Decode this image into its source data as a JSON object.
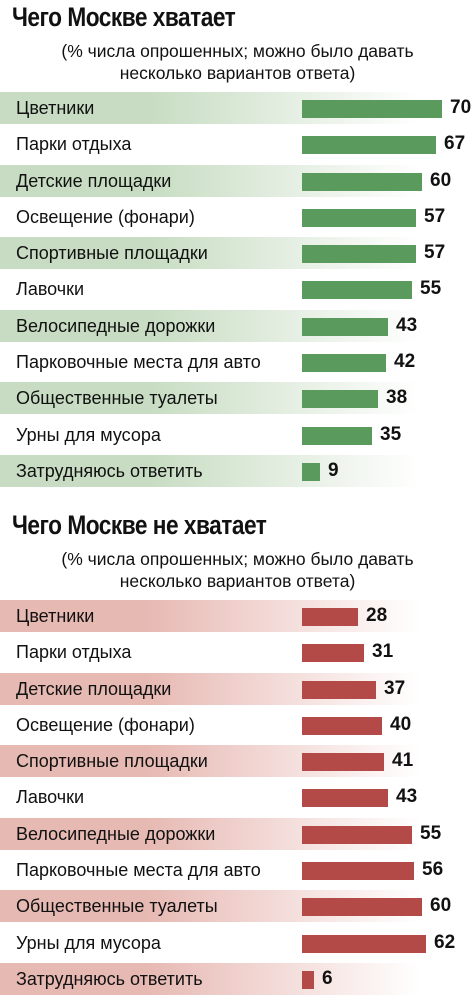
{
  "colors": {
    "green_bar": "#5a9a5c",
    "green_band": "#c7dcc2",
    "red_bar": "#b34a48",
    "red_band": "#e7b9b3"
  },
  "chart_data": [
    {
      "type": "bar",
      "orientation": "horizontal",
      "title": "Чего Москве хватает",
      "subtitle": "(% числа опрошенных; можно было давать\nнесколько вариантов ответа)",
      "categories": [
        "Цветники",
        "Парки отдыха",
        "Детские площадки",
        "Освещение (фонари)",
        "Спортивные площадки",
        "Лавочки",
        "Велосипедные дорожки",
        "Парковочные места для авто",
        "Общественные туалеты",
        "Урны для мусора",
        "Затрудняюсь ответить"
      ],
      "values": [
        70,
        67,
        60,
        57,
        57,
        55,
        43,
        42,
        38,
        35,
        9
      ],
      "data_labels": [
        "70",
        "67",
        "60",
        "57",
        "57",
        "55",
        "43",
        "42",
        "38",
        "35",
        "9"
      ],
      "xlim": [
        0,
        70
      ],
      "grid": false,
      "legend": "none",
      "color": "#5a9a5c",
      "band_color": "#c7dcc2"
    },
    {
      "type": "bar",
      "orientation": "horizontal",
      "title": "Чего Москве не хватает",
      "subtitle": "(% числа опрошенных; можно было давать\nнесколько вариантов ответа)",
      "categories": [
        "Цветники",
        "Парки отдыха",
        "Детские площадки",
        "Освещение (фонари)",
        "Спортивные площадки",
        "Лавочки",
        "Велосипедные дорожки",
        "Парковочные места для авто",
        "Общественные туалеты",
        "Урны для мусора",
        "Затрудняюсь ответить"
      ],
      "values": [
        28,
        31,
        37,
        40,
        41,
        43,
        55,
        56,
        60,
        62,
        6
      ],
      "data_labels": [
        "28",
        "31",
        "37",
        "40",
        "41",
        "43",
        "55",
        "56",
        "60",
        "62",
        "6"
      ],
      "xlim": [
        0,
        70
      ],
      "grid": false,
      "legend": "none",
      "color": "#b34a48",
      "band_color": "#e7b9b3"
    }
  ]
}
